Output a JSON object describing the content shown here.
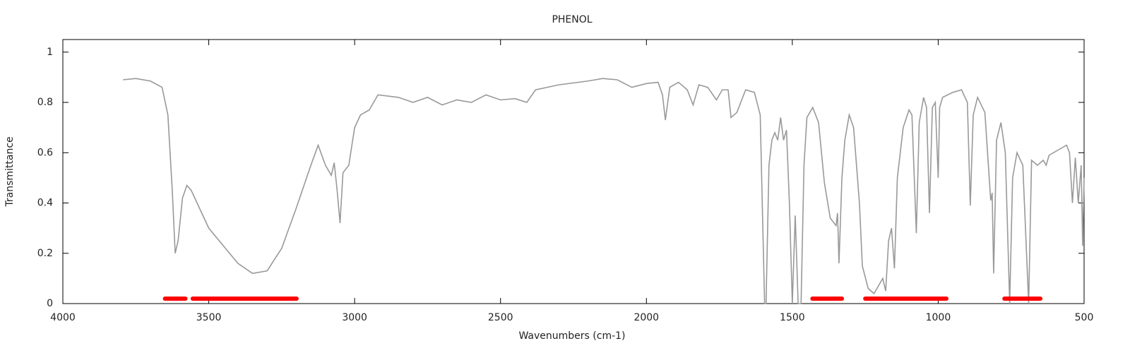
{
  "chart_data": {
    "type": "line",
    "title": "PHENOL",
    "x_label": "Wavenumbers (cm-1)",
    "y_label": "Transmittance",
    "xlim": [
      4000,
      500
    ],
    "ylim": [
      0,
      1.05
    ],
    "xticks": [
      4000,
      3500,
      3000,
      2500,
      2000,
      1500,
      1000,
      500
    ],
    "yticks": [
      0,
      0.2,
      0.4,
      0.6,
      0.8,
      1
    ],
    "color": "#999999",
    "band_color": "#ff0000",
    "x": [
      3794,
      3750,
      3700,
      3660,
      3640,
      3625,
      3615,
      3605,
      3590,
      3575,
      3560,
      3540,
      3500,
      3450,
      3400,
      3350,
      3300,
      3250,
      3200,
      3150,
      3125,
      3100,
      3080,
      3070,
      3060,
      3050,
      3040,
      3020,
      3000,
      2980,
      2950,
      2920,
      2850,
      2800,
      2750,
      2700,
      2650,
      2600,
      2550,
      2500,
      2450,
      2410,
      2380,
      2300,
      2200,
      2150,
      2100,
      2050,
      2000,
      1960,
      1945,
      1935,
      1920,
      1890,
      1860,
      1840,
      1820,
      1790,
      1760,
      1740,
      1720,
      1710,
      1690,
      1660,
      1630,
      1610,
      1600,
      1595,
      1590,
      1580,
      1570,
      1560,
      1550,
      1540,
      1530,
      1520,
      1510,
      1500,
      1490,
      1480,
      1470,
      1460,
      1450,
      1430,
      1410,
      1390,
      1370,
      1350,
      1345,
      1340,
      1330,
      1320,
      1305,
      1290,
      1270,
      1260,
      1240,
      1220,
      1200,
      1190,
      1180,
      1170,
      1160,
      1150,
      1140,
      1120,
      1100,
      1090,
      1075,
      1065,
      1050,
      1040,
      1030,
      1020,
      1010,
      1000,
      995,
      985,
      950,
      920,
      900,
      890,
      880,
      865,
      840,
      820,
      815,
      810,
      800,
      785,
      770,
      755,
      745,
      730,
      710,
      690,
      680,
      660,
      640,
      630,
      620,
      560,
      550,
      540,
      530,
      520,
      510,
      505,
      500
    ],
    "values": [
      0.89,
      0.895,
      0.885,
      0.86,
      0.75,
      0.45,
      0.2,
      0.25,
      0.42,
      0.47,
      0.45,
      0.4,
      0.3,
      0.23,
      0.16,
      0.12,
      0.13,
      0.22,
      0.38,
      0.55,
      0.63,
      0.55,
      0.51,
      0.56,
      0.45,
      0.32,
      0.52,
      0.55,
      0.7,
      0.75,
      0.77,
      0.83,
      0.82,
      0.8,
      0.82,
      0.79,
      0.81,
      0.8,
      0.83,
      0.81,
      0.815,
      0.8,
      0.85,
      0.87,
      0.885,
      0.895,
      0.89,
      0.86,
      0.875,
      0.88,
      0.83,
      0.73,
      0.86,
      0.88,
      0.85,
      0.79,
      0.87,
      0.86,
      0.81,
      0.85,
      0.85,
      0.74,
      0.76,
      0.85,
      0.84,
      0.75,
      0.25,
      0,
      0,
      0.55,
      0.65,
      0.68,
      0.65,
      0.74,
      0.65,
      0.69,
      0.4,
      0,
      0.35,
      0,
      0,
      0.55,
      0.74,
      0.78,
      0.72,
      0.48,
      0.34,
      0.31,
      0.36,
      0.16,
      0.5,
      0.65,
      0.75,
      0.7,
      0.4,
      0.15,
      0.06,
      0.04,
      0.08,
      0.1,
      0.05,
      0.25,
      0.3,
      0.14,
      0.5,
      0.7,
      0.77,
      0.75,
      0.28,
      0.72,
      0.82,
      0.78,
      0.36,
      0.78,
      0.8,
      0.5,
      0.78,
      0.82,
      0.84,
      0.85,
      0.8,
      0.39,
      0.75,
      0.82,
      0.76,
      0.41,
      0.44,
      0.12,
      0.65,
      0.72,
      0.6,
      0,
      0.5,
      0.6,
      0.55,
      0,
      0.57,
      0.55,
      0.57,
      0.55,
      0.59,
      0.63,
      0.6,
      0.4,
      0.58,
      0.4,
      0.55,
      0.23,
      0.5
    ],
    "bands": [
      [
        3650,
        3580
      ],
      [
        3555,
        3199
      ],
      [
        1431,
        1330
      ],
      [
        1250,
        972
      ],
      [
        773,
        650
      ]
    ]
  }
}
